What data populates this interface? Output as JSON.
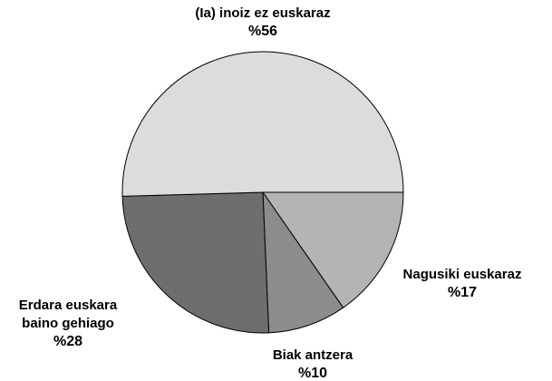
{
  "chart_data": {
    "type": "pie",
    "categories": [
      "Nagusiki euskaraz",
      "Biak antzera",
      "Erdara euskara baino gehiago",
      "(Ia) inoiz ez euskaraz"
    ],
    "values": [
      17,
      10,
      28,
      56
    ],
    "value_labels": [
      "%17",
      "%10",
      "%28",
      "%56"
    ],
    "colors": [
      "#b4b4b4",
      "#8c8c8c",
      "#6e6e6e",
      "#dcdcdc"
    ]
  }
}
